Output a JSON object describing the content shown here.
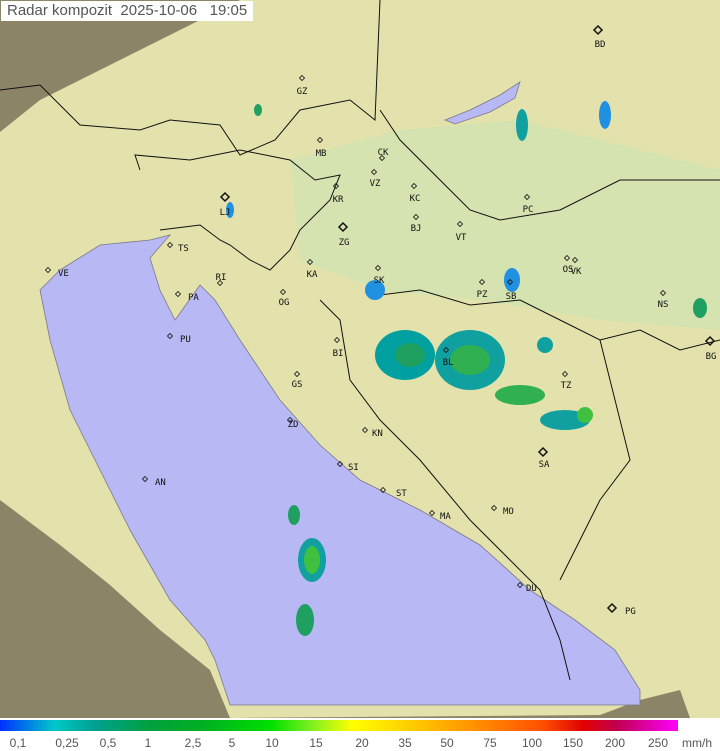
{
  "title": {
    "label": "Radar kompozit",
    "date": "2025-10-06",
    "time": "19:05"
  },
  "cities": [
    "BD",
    "GZ",
    "MB",
    "CK",
    "VZ",
    "KR",
    "KC",
    "PC",
    "LJ",
    "ZG",
    "BJ",
    "VT",
    "TS",
    "VE",
    "RI",
    "KA",
    "SK",
    "OS",
    "VK",
    "NS",
    "BG",
    "PA",
    "PU",
    "OG",
    "PZ",
    "SB",
    "BI",
    "BL",
    "GS",
    "TZ",
    "ZD",
    "KN",
    "SA",
    "SI",
    "AN",
    "ST",
    "MA",
    "MO",
    "DU",
    "PG"
  ],
  "legend": {
    "labels": [
      "0,1",
      "0,25",
      "0,5",
      "1",
      "2,5",
      "5",
      "10",
      "15",
      "20",
      "35",
      "50",
      "75",
      "100",
      "150",
      "200",
      "250"
    ],
    "unit": "mm/h"
  },
  "colors": {
    "sea": "#b8b8f4",
    "land": "#e6e6b0",
    "outside_coverage": "#8c8466"
  }
}
